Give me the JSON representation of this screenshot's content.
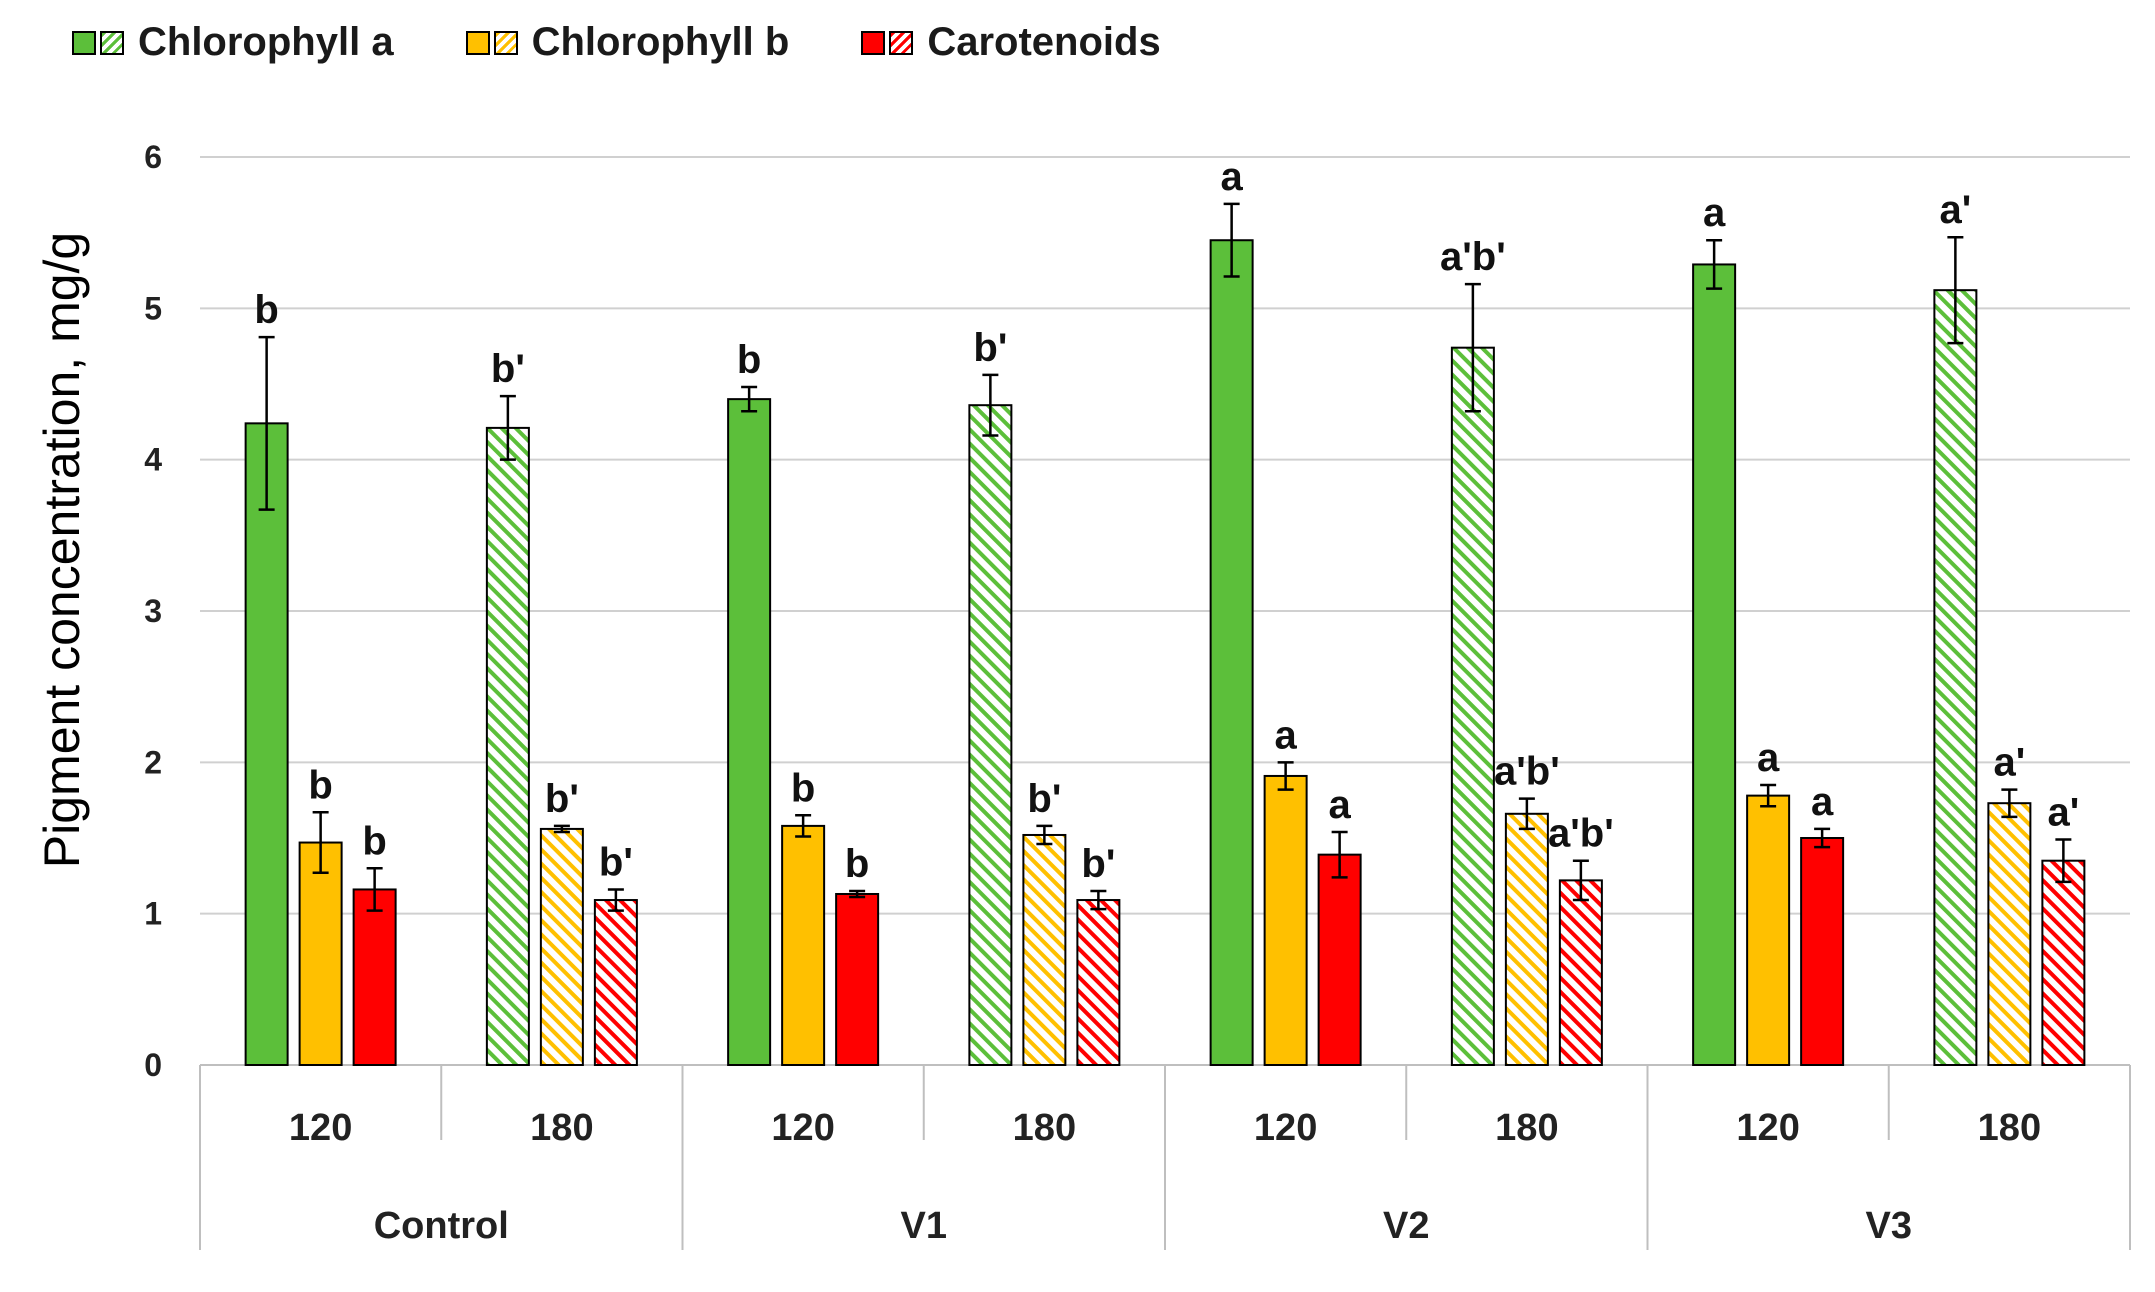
{
  "chart_data": {
    "type": "bar",
    "ylabel": "Pigment concentration, mg/g",
    "ylim": [
      0,
      6
    ],
    "yticks": [
      "0",
      "1",
      "2",
      "3",
      "4",
      "5",
      "6"
    ],
    "grid": true,
    "legend": {
      "position": "top-left",
      "entries": [
        "Chlorophyll a",
        "Chlorophyll b",
        "Carotenoids"
      ]
    },
    "groups": [
      {
        "name": "Control",
        "periods": [
          "120",
          "180"
        ]
      },
      {
        "name": "V1",
        "periods": [
          "120",
          "180"
        ]
      },
      {
        "name": "V2",
        "periods": [
          "120",
          "180"
        ]
      },
      {
        "name": "V3",
        "periods": [
          "120",
          "180"
        ]
      }
    ],
    "series": [
      {
        "name": "Chlorophyll a",
        "color": "#5cbf3a",
        "values": [
          4.24,
          4.21,
          4.4,
          4.36,
          5.45,
          4.74,
          5.29,
          5.12
        ],
        "errors": [
          0.57,
          0.21,
          0.08,
          0.2,
          0.24,
          0.42,
          0.16,
          0.35
        ],
        "labels": [
          "b",
          "b'",
          "b",
          "b'",
          "a",
          "a'b'",
          "a",
          "a'"
        ]
      },
      {
        "name": "Chlorophyll b",
        "color": "#ffc000",
        "values": [
          1.47,
          1.56,
          1.58,
          1.52,
          1.91,
          1.66,
          1.78,
          1.73
        ],
        "errors": [
          0.2,
          0.02,
          0.07,
          0.06,
          0.09,
          0.1,
          0.07,
          0.09
        ],
        "labels": [
          "b",
          "b'",
          "b",
          "b'",
          "a",
          "a'b'",
          "a",
          "a'"
        ]
      },
      {
        "name": "Carotenoids",
        "color": "#ff0000",
        "values": [
          1.16,
          1.09,
          1.13,
          1.09,
          1.39,
          1.22,
          1.5,
          1.35
        ],
        "errors": [
          0.14,
          0.07,
          0.02,
          0.06,
          0.15,
          0.13,
          0.06,
          0.14
        ],
        "labels": [
          "b",
          "b'",
          "b",
          "b'",
          "a",
          "a'b'",
          "a",
          "a'"
        ]
      }
    ],
    "hatched_periods": [
      "180"
    ]
  }
}
